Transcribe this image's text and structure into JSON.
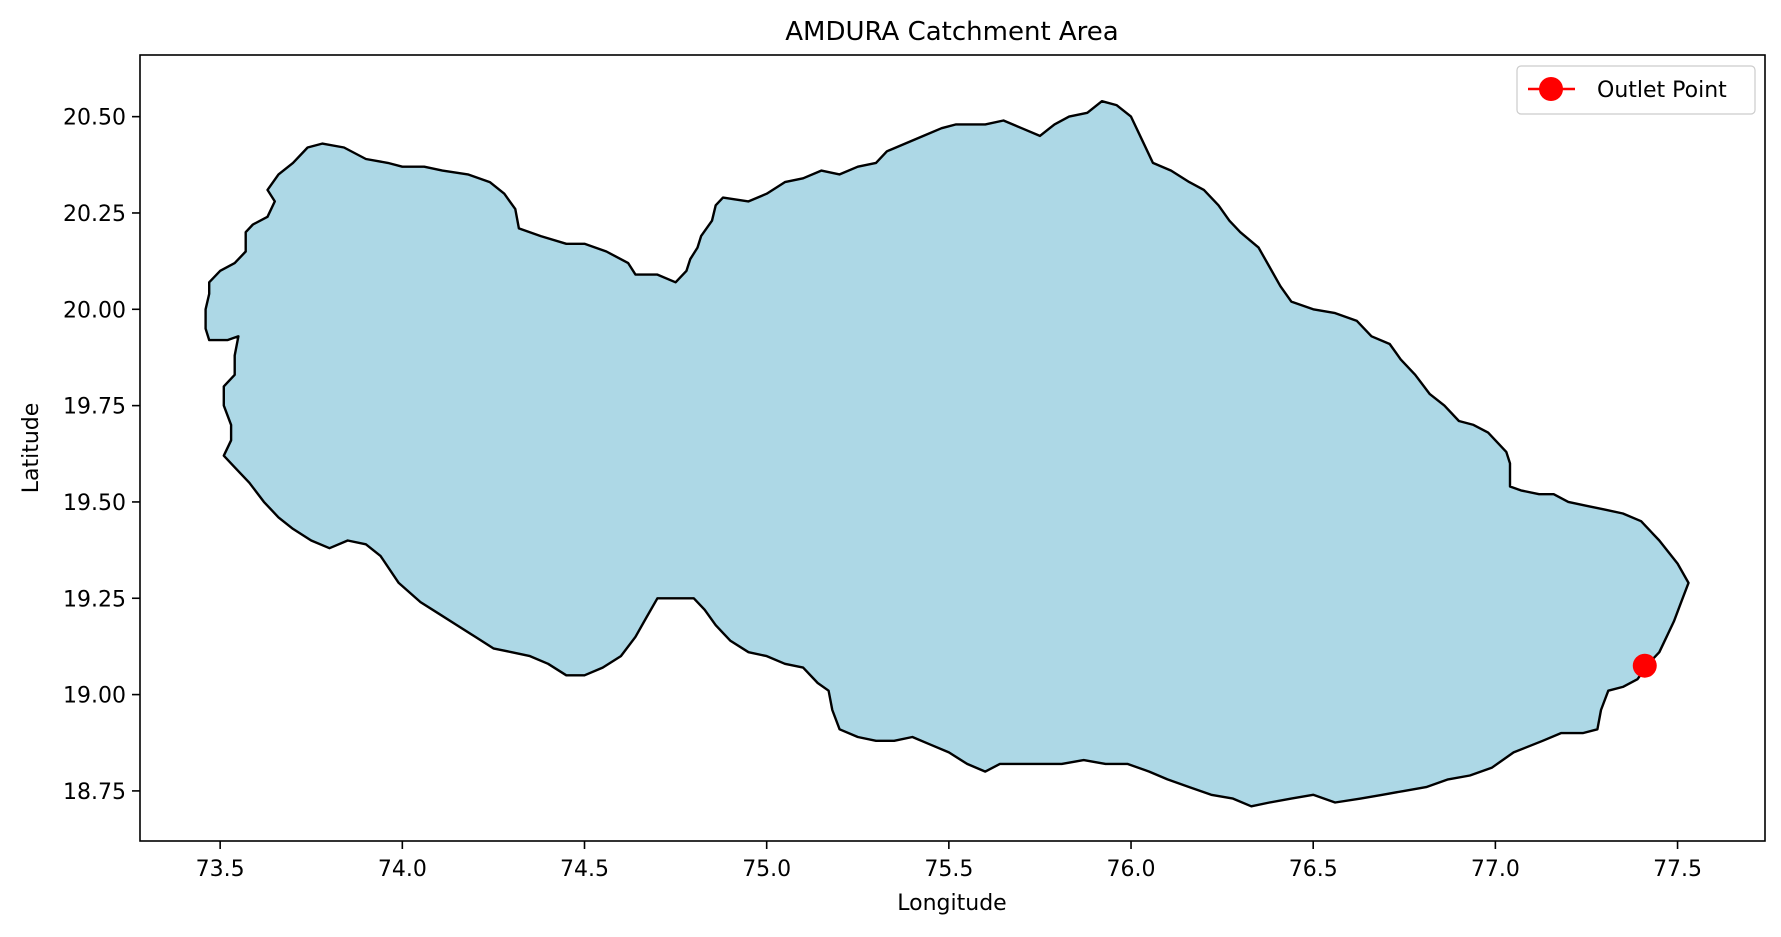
{
  "chart_data": {
    "type": "map",
    "title": "AMDURA Catchment Area",
    "xlabel": "Longitude",
    "ylabel": "Latitude",
    "xlim": [
      73.28,
      77.74
    ],
    "ylim": [
      18.62,
      20.66
    ],
    "xticks": [
      {
        "value": 73.5,
        "label": "73.5"
      },
      {
        "value": 74.0,
        "label": "74.0"
      },
      {
        "value": 74.5,
        "label": "74.5"
      },
      {
        "value": 75.0,
        "label": "75.0"
      },
      {
        "value": 75.5,
        "label": "75.5"
      },
      {
        "value": 76.0,
        "label": "76.0"
      },
      {
        "value": 76.5,
        "label": "76.5"
      },
      {
        "value": 77.0,
        "label": "77.0"
      },
      {
        "value": 77.5,
        "label": "77.5"
      }
    ],
    "yticks": [
      {
        "value": 18.75,
        "label": "18.75"
      },
      {
        "value": 19.0,
        "label": "19.00"
      },
      {
        "value": 19.25,
        "label": "19.25"
      },
      {
        "value": 19.5,
        "label": "19.50"
      },
      {
        "value": 19.75,
        "label": "19.75"
      },
      {
        "value": 20.0,
        "label": "20.00"
      },
      {
        "value": 20.25,
        "label": "20.25"
      },
      {
        "value": 20.5,
        "label": "20.50"
      }
    ],
    "grid": false,
    "legend": {
      "position": "top-right",
      "entries": [
        {
          "label": "Outlet Point",
          "color": "#ff0000",
          "marker": "circle"
        }
      ]
    },
    "catchment": {
      "fill": "#add8e6",
      "edge": "#000000",
      "boundary": [
        [
          73.47,
          20.07
        ],
        [
          73.5,
          20.1
        ],
        [
          73.54,
          20.12
        ],
        [
          73.57,
          20.15
        ],
        [
          73.57,
          20.2
        ],
        [
          73.59,
          20.22
        ],
        [
          73.63,
          20.24
        ],
        [
          73.65,
          20.28
        ],
        [
          73.63,
          20.31
        ],
        [
          73.66,
          20.35
        ],
        [
          73.7,
          20.38
        ],
        [
          73.74,
          20.42
        ],
        [
          73.78,
          20.43
        ],
        [
          73.84,
          20.42
        ],
        [
          73.9,
          20.39
        ],
        [
          73.96,
          20.38
        ],
        [
          74.0,
          20.37
        ],
        [
          74.06,
          20.37
        ],
        [
          74.11,
          20.36
        ],
        [
          74.18,
          20.35
        ],
        [
          74.24,
          20.33
        ],
        [
          74.28,
          20.3
        ],
        [
          74.31,
          20.26
        ],
        [
          74.32,
          20.21
        ],
        [
          74.38,
          20.19
        ],
        [
          74.45,
          20.17
        ],
        [
          74.5,
          20.17
        ],
        [
          74.56,
          20.15
        ],
        [
          74.62,
          20.12
        ],
        [
          74.64,
          20.09
        ],
        [
          74.7,
          20.09
        ],
        [
          74.75,
          20.07
        ],
        [
          74.78,
          20.1
        ],
        [
          74.79,
          20.13
        ],
        [
          74.81,
          20.16
        ],
        [
          74.82,
          20.19
        ],
        [
          74.85,
          20.23
        ],
        [
          74.86,
          20.27
        ],
        [
          74.88,
          20.29
        ],
        [
          74.95,
          20.28
        ],
        [
          75.0,
          20.3
        ],
        [
          75.05,
          20.33
        ],
        [
          75.1,
          20.34
        ],
        [
          75.15,
          20.36
        ],
        [
          75.2,
          20.35
        ],
        [
          75.25,
          20.37
        ],
        [
          75.3,
          20.38
        ],
        [
          75.33,
          20.41
        ],
        [
          75.38,
          20.43
        ],
        [
          75.43,
          20.45
        ],
        [
          75.48,
          20.47
        ],
        [
          75.52,
          20.48
        ],
        [
          75.56,
          20.48
        ],
        [
          75.6,
          20.48
        ],
        [
          75.65,
          20.49
        ],
        [
          75.7,
          20.47
        ],
        [
          75.75,
          20.45
        ],
        [
          75.79,
          20.48
        ],
        [
          75.83,
          20.5
        ],
        [
          75.88,
          20.51
        ],
        [
          75.92,
          20.54
        ],
        [
          75.96,
          20.53
        ],
        [
          76.0,
          20.5
        ],
        [
          76.03,
          20.44
        ],
        [
          76.06,
          20.38
        ],
        [
          76.11,
          20.36
        ],
        [
          76.16,
          20.33
        ],
        [
          76.2,
          20.31
        ],
        [
          76.24,
          20.27
        ],
        [
          76.27,
          20.23
        ],
        [
          76.3,
          20.2
        ],
        [
          76.35,
          20.16
        ],
        [
          76.38,
          20.11
        ],
        [
          76.41,
          20.06
        ],
        [
          76.44,
          20.02
        ],
        [
          76.5,
          20.0
        ],
        [
          76.56,
          19.99
        ],
        [
          76.62,
          19.97
        ],
        [
          76.66,
          19.93
        ],
        [
          76.71,
          19.91
        ],
        [
          76.74,
          19.87
        ],
        [
          76.78,
          19.83
        ],
        [
          76.82,
          19.78
        ],
        [
          76.86,
          19.75
        ],
        [
          76.9,
          19.71
        ],
        [
          76.94,
          19.7
        ],
        [
          76.98,
          19.68
        ],
        [
          77.03,
          19.63
        ],
        [
          77.04,
          19.6
        ],
        [
          77.04,
          19.54
        ],
        [
          77.07,
          19.53
        ],
        [
          77.12,
          19.52
        ],
        [
          77.16,
          19.52
        ],
        [
          77.2,
          19.5
        ],
        [
          77.25,
          19.49
        ],
        [
          77.3,
          19.48
        ],
        [
          77.35,
          19.47
        ],
        [
          77.4,
          19.45
        ],
        [
          77.45,
          19.4
        ],
        [
          77.5,
          19.34
        ],
        [
          77.53,
          19.29
        ],
        [
          77.51,
          19.24
        ],
        [
          77.49,
          19.19
        ],
        [
          77.47,
          19.15
        ],
        [
          77.45,
          19.11
        ],
        [
          77.42,
          19.08
        ],
        [
          77.39,
          19.04
        ],
        [
          77.35,
          19.02
        ],
        [
          77.31,
          19.01
        ],
        [
          77.29,
          18.96
        ],
        [
          77.28,
          18.91
        ],
        [
          77.24,
          18.9
        ],
        [
          77.18,
          18.9
        ],
        [
          77.13,
          18.88
        ],
        [
          77.05,
          18.85
        ],
        [
          76.99,
          18.81
        ],
        [
          76.93,
          18.79
        ],
        [
          76.87,
          18.78
        ],
        [
          76.81,
          18.76
        ],
        [
          76.75,
          18.75
        ],
        [
          76.69,
          18.74
        ],
        [
          76.63,
          18.73
        ],
        [
          76.56,
          18.72
        ],
        [
          76.5,
          18.74
        ],
        [
          76.44,
          18.73
        ],
        [
          76.38,
          18.72
        ],
        [
          76.33,
          18.71
        ],
        [
          76.28,
          18.73
        ],
        [
          76.22,
          18.74
        ],
        [
          76.16,
          18.76
        ],
        [
          76.1,
          18.78
        ],
        [
          76.05,
          18.8
        ],
        [
          75.99,
          18.82
        ],
        [
          75.93,
          18.82
        ],
        [
          75.87,
          18.83
        ],
        [
          75.81,
          18.82
        ],
        [
          75.75,
          18.82
        ],
        [
          75.7,
          18.82
        ],
        [
          75.64,
          18.82
        ],
        [
          75.6,
          18.8
        ],
        [
          75.55,
          18.82
        ],
        [
          75.5,
          18.85
        ],
        [
          75.45,
          18.87
        ],
        [
          75.4,
          18.89
        ],
        [
          75.35,
          18.88
        ],
        [
          75.3,
          18.88
        ],
        [
          75.25,
          18.89
        ],
        [
          75.2,
          18.91
        ],
        [
          75.18,
          18.96
        ],
        [
          75.17,
          19.01
        ],
        [
          75.14,
          19.03
        ],
        [
          75.1,
          19.07
        ],
        [
          75.05,
          19.08
        ],
        [
          75.0,
          19.1
        ],
        [
          74.95,
          19.11
        ],
        [
          74.9,
          19.14
        ],
        [
          74.86,
          19.18
        ],
        [
          74.83,
          19.22
        ],
        [
          74.8,
          19.25
        ],
        [
          74.75,
          19.25
        ],
        [
          74.7,
          19.25
        ],
        [
          74.67,
          19.2
        ],
        [
          74.64,
          19.15
        ],
        [
          74.6,
          19.1
        ],
        [
          74.55,
          19.07
        ],
        [
          74.5,
          19.05
        ],
        [
          74.45,
          19.05
        ],
        [
          74.4,
          19.08
        ],
        [
          74.35,
          19.1
        ],
        [
          74.3,
          19.11
        ],
        [
          74.25,
          19.12
        ],
        [
          74.2,
          19.15
        ],
        [
          74.15,
          19.18
        ],
        [
          74.1,
          19.21
        ],
        [
          74.05,
          19.24
        ],
        [
          73.99,
          19.29
        ],
        [
          73.94,
          19.36
        ],
        [
          73.9,
          19.39
        ],
        [
          73.85,
          19.4
        ],
        [
          73.8,
          19.38
        ],
        [
          73.75,
          19.4
        ],
        [
          73.7,
          19.43
        ],
        [
          73.66,
          19.46
        ],
        [
          73.62,
          19.5
        ],
        [
          73.58,
          19.55
        ],
        [
          73.54,
          19.59
        ],
        [
          73.51,
          19.62
        ],
        [
          73.53,
          19.66
        ],
        [
          73.53,
          19.7
        ],
        [
          73.51,
          19.75
        ],
        [
          73.51,
          19.8
        ],
        [
          73.54,
          19.83
        ],
        [
          73.54,
          19.88
        ],
        [
          73.55,
          19.93
        ],
        [
          73.52,
          19.92
        ],
        [
          73.47,
          19.92
        ],
        [
          73.46,
          19.95
        ],
        [
          73.46,
          20.0
        ],
        [
          73.47,
          20.04
        ]
      ]
    },
    "outlet_point": {
      "label": "Outlet Point",
      "lon": 77.41,
      "lat": 19.075,
      "color": "#ff0000"
    }
  }
}
